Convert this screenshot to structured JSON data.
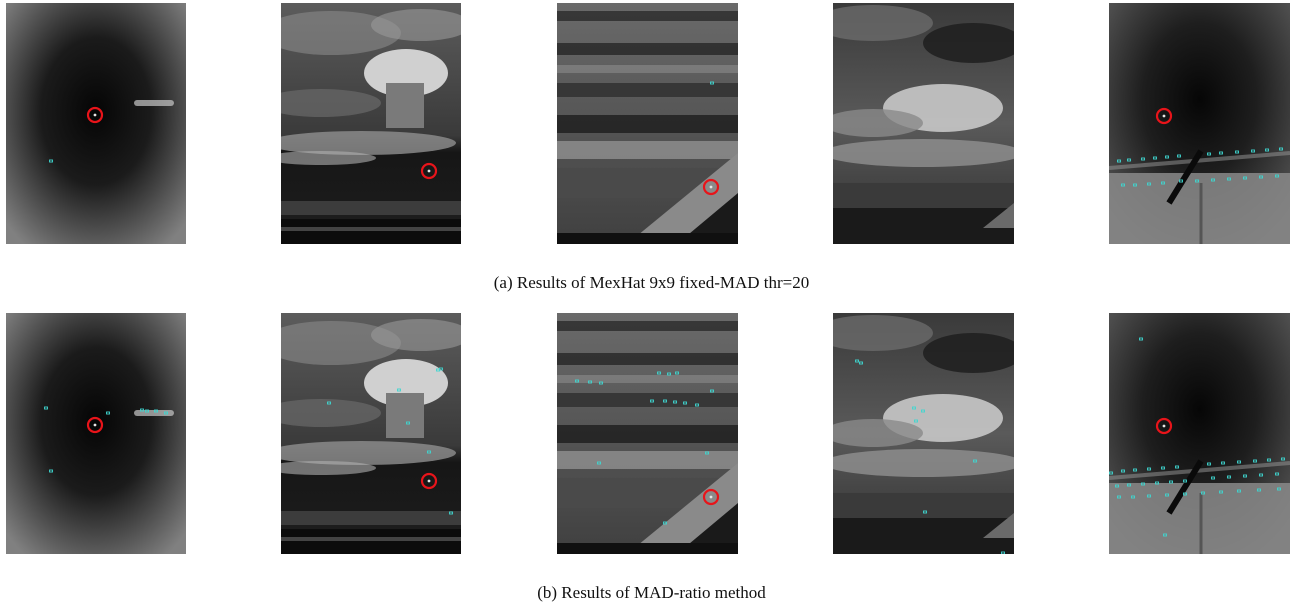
{
  "figure": {
    "rows": [
      {
        "caption": "(a) Results of MexHat 9x9 fixed-MAD thr=20",
        "panels": [
          {
            "scene": "vignette",
            "target_present": true
          },
          {
            "scene": "cumulus-cloud",
            "target_present": true
          },
          {
            "scene": "cloud-layers",
            "target_present": true
          },
          {
            "scene": "clouds-coast",
            "target_present": false
          },
          {
            "scene": "vignette-structure",
            "target_present": true
          }
        ]
      },
      {
        "caption": "(b) Results of MAD-ratio method",
        "panels": [
          {
            "scene": "vignette",
            "target_present": true
          },
          {
            "scene": "cumulus-cloud",
            "target_present": true
          },
          {
            "scene": "cloud-layers",
            "target_present": true
          },
          {
            "scene": "clouds-coast",
            "target_present": false
          },
          {
            "scene": "vignette-structure",
            "target_present": true
          }
        ]
      }
    ],
    "colors": {
      "target_marker": "#e8141a",
      "detection_marker": "#3fd6d0"
    }
  }
}
